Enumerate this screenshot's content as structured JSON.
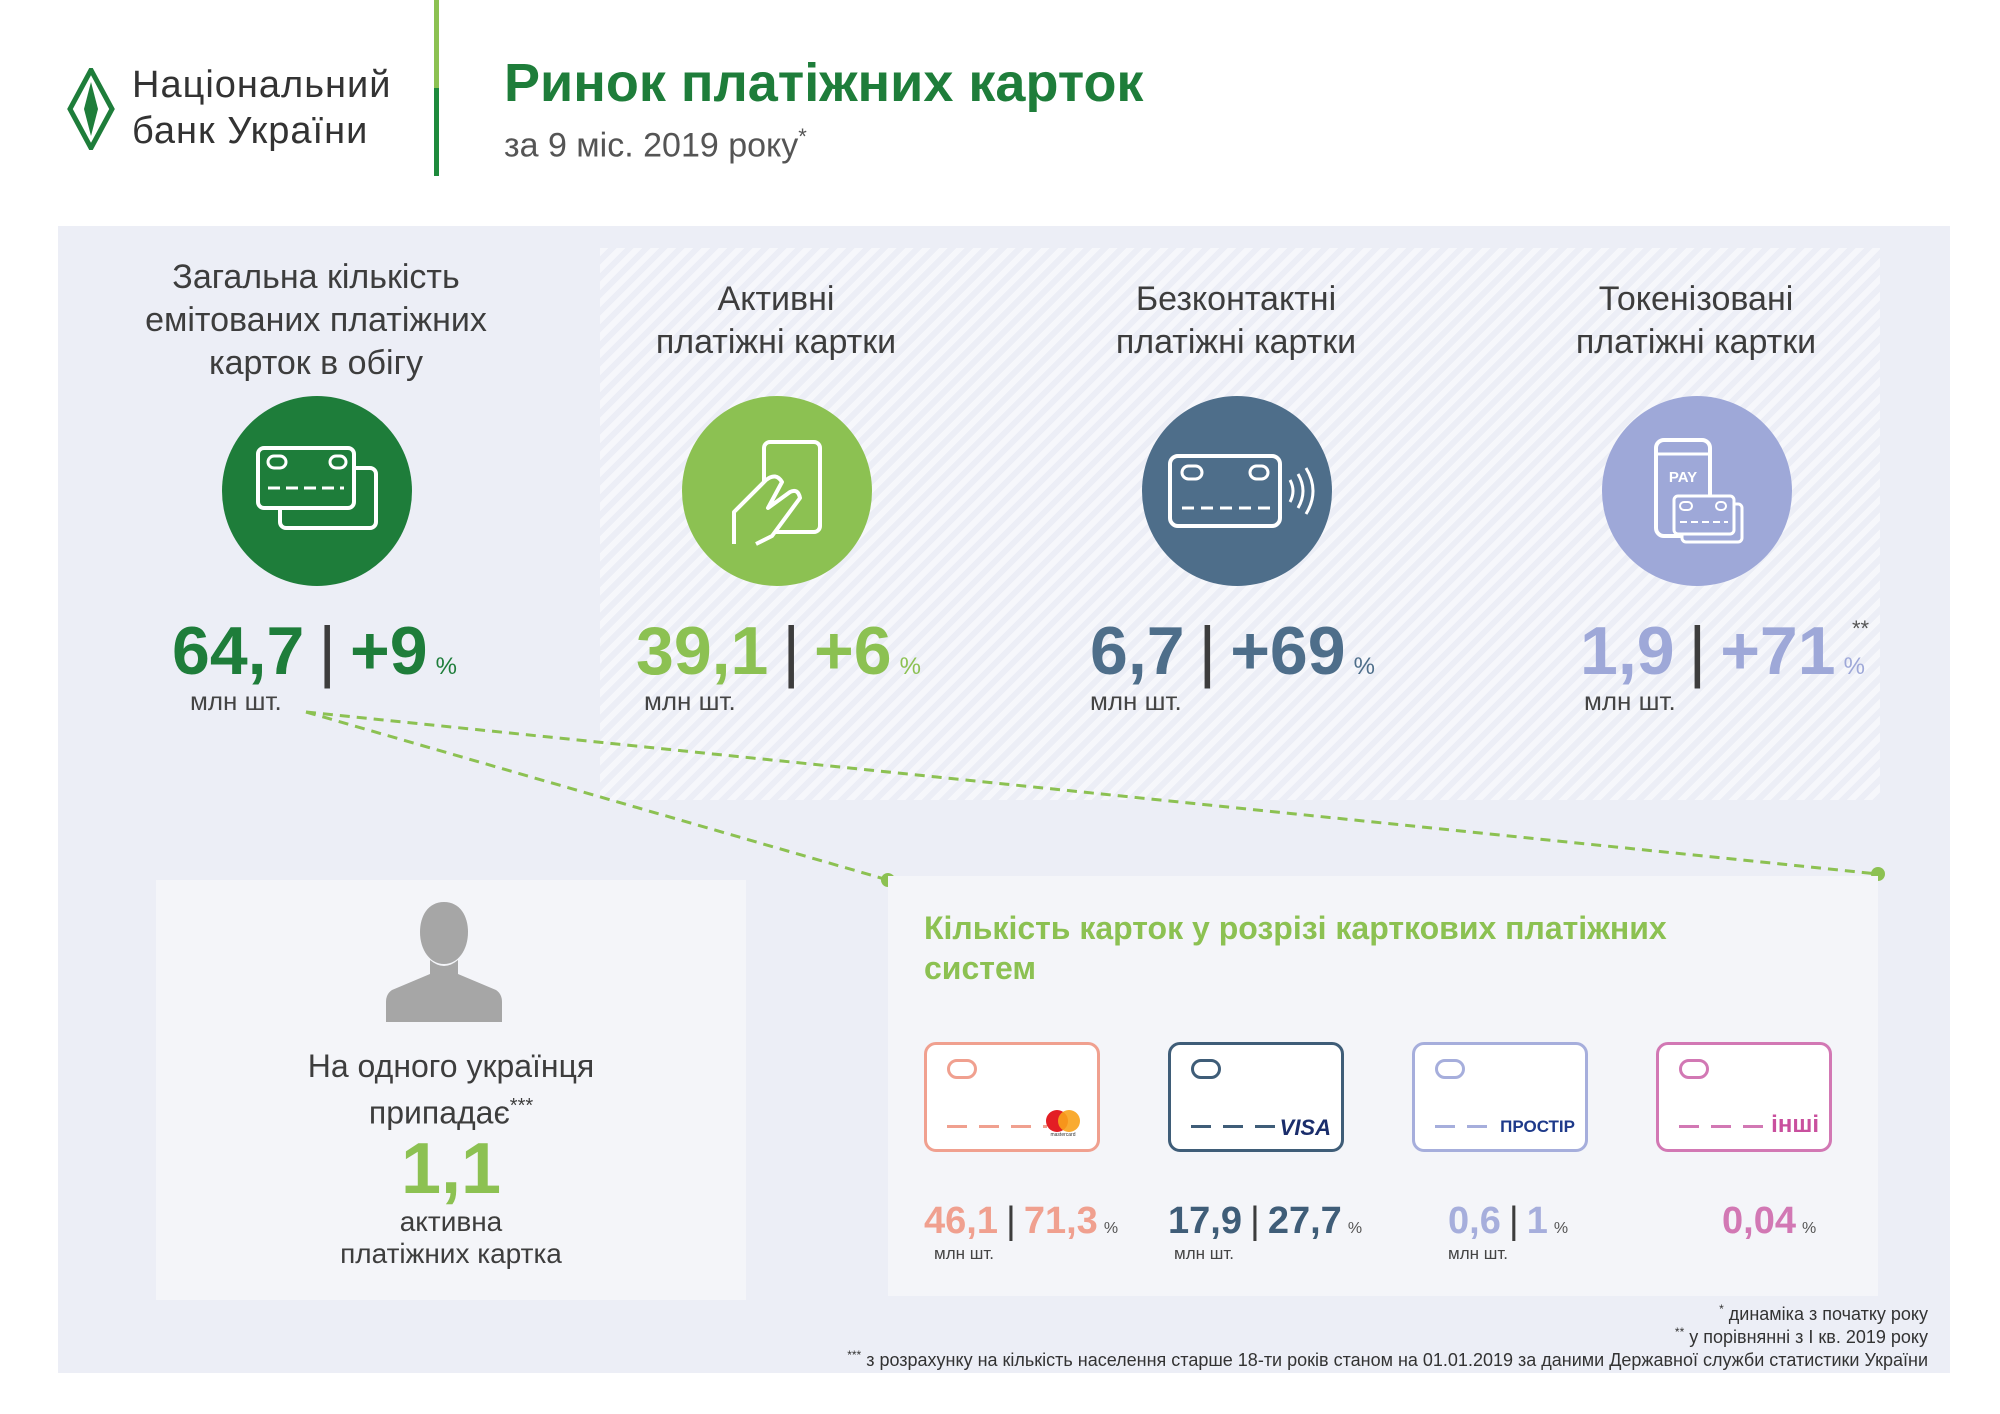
{
  "header": {
    "org_line1": "Національний",
    "org_line2": "банк України",
    "title": "Ринок платіжних карток",
    "subtitle": "за 9 міс. 2019 року",
    "subtitle_mark": "*"
  },
  "colors": {
    "dark_green": "#1e7d3a",
    "light_green": "#8cc152",
    "slate": "#4e6e8a",
    "lavender": "#9ea8d8",
    "salmon": "#f0a08f",
    "navy": "#3f5d78",
    "periwinkle": "#a6aedc",
    "pink": "#d278b4"
  },
  "metrics": [
    {
      "title1": "Загальна кількість",
      "title2": "емітованих платіжних",
      "title3": "карток в обігу",
      "value": "64,7",
      "sep": "|",
      "change": "+9",
      "pct": "%",
      "mark": "",
      "unit": "млн шт.",
      "icon": "cards-icon"
    },
    {
      "title1": "Активні",
      "title2": "платіжні картки",
      "title3": "",
      "value": "39,1",
      "sep": "|",
      "change": "+6",
      "pct": "%",
      "mark": "",
      "unit": "млн шт.",
      "icon": "hand-card-icon"
    },
    {
      "title1": "Безконтактні",
      "title2": "платіжні картки",
      "title3": "",
      "value": "6,7",
      "sep": "|",
      "change": "+69",
      "pct": "%",
      "mark": "",
      "unit": "млн шт.",
      "icon": "contactless-card-icon"
    },
    {
      "title1": "Токенізовані",
      "title2": "платіжні картки",
      "title3": "",
      "value": "1,9",
      "sep": "|",
      "change": "+71",
      "pct": "%",
      "mark": "**",
      "unit": "млн шт.",
      "icon": "phone-pay-icon"
    }
  ],
  "per_person": {
    "line1": "На одного українця",
    "line2": "припадає",
    "mark": "***",
    "value": "1,1",
    "line3": "активна",
    "line4": "платіжних картка"
  },
  "systems": {
    "title": "Кількість карток у розрізі карткових платіжних систем",
    "items": [
      {
        "brand": "mastercard",
        "value": "46,1",
        "sep": "|",
        "share": "71,3",
        "pct": "%",
        "unit": "млн шт."
      },
      {
        "brand": "VISA",
        "value": "17,9",
        "sep": "|",
        "share": "27,7",
        "pct": "%",
        "unit": "млн шт."
      },
      {
        "brand": "ПРОСТІР",
        "value": "0,6",
        "sep": "|",
        "share": "1",
        "pct": "%",
        "unit": "млн шт."
      },
      {
        "brand": "інші",
        "value": "",
        "sep": "",
        "share": "0,04",
        "pct": "%",
        "unit": ""
      }
    ]
  },
  "pay_label": "PAY",
  "footnotes": [
    {
      "mark": "*",
      "text": " динаміка з початку року"
    },
    {
      "mark": "**",
      "text": " у порівнянні з I кв. 2019 року"
    },
    {
      "mark": "***",
      "text": " з розрахунку на кількість населення старше 18-ти років станом на 01.01.2019 за даними Державної служби статистики України"
    }
  ]
}
